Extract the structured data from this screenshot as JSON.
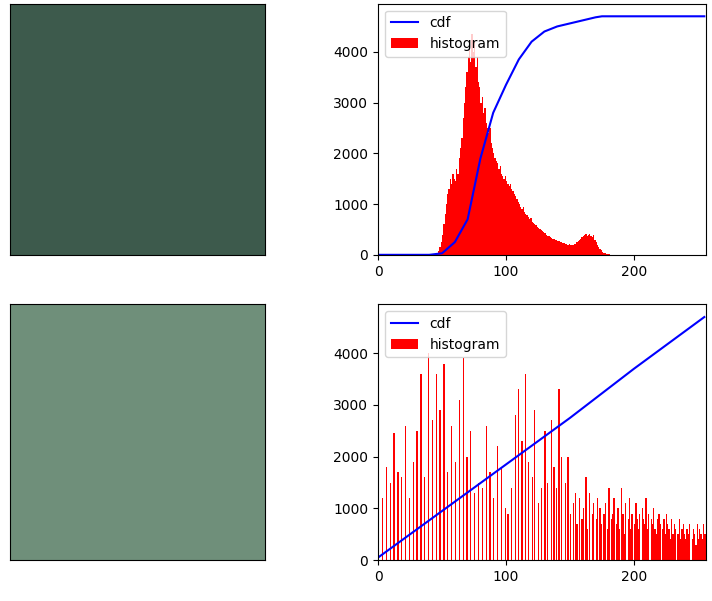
{
  "chart_data": [
    {
      "type": "histogram",
      "legend": "upper left",
      "xlim": [
        0,
        256
      ],
      "xticks": [
        0,
        100,
        200
      ],
      "ylim": [
        0,
        4950
      ],
      "yticks": [
        0,
        1000,
        2000,
        3000,
        4000
      ],
      "series": [
        {
          "name": "cdf",
          "type": "line",
          "color": "blue",
          "x": [
            0,
            40,
            50,
            60,
            70,
            80,
            90,
            100,
            110,
            120,
            130,
            140,
            150,
            160,
            170,
            175,
            190,
            255
          ],
          "values": [
            0,
            0,
            30,
            250,
            700,
            1900,
            2800,
            3350,
            3850,
            4200,
            4400,
            4500,
            4560,
            4620,
            4680,
            4700,
            4700,
            4700
          ]
        },
        {
          "name": "histogram",
          "type": "bar",
          "color": "red",
          "bins": [
            0,
            1,
            2,
            3,
            4,
            5,
            6,
            7,
            8,
            9,
            10,
            11,
            12,
            13,
            14,
            15,
            16,
            17,
            18,
            19,
            20,
            21,
            22,
            23,
            24,
            25,
            26,
            27,
            28,
            29,
            30,
            31,
            32,
            33,
            34,
            35,
            36,
            37,
            38,
            39,
            40,
            41,
            42,
            43,
            44,
            45,
            46,
            47,
            48,
            49,
            50,
            51,
            52,
            53,
            54,
            55,
            56,
            57,
            58,
            59,
            60,
            61,
            62,
            63,
            64,
            65,
            66,
            67,
            68,
            69,
            70,
            71,
            72,
            73,
            74,
            75,
            76,
            77,
            78,
            79,
            80,
            81,
            82,
            83,
            84,
            85,
            86,
            87,
            88,
            89,
            90,
            91,
            92,
            93,
            94,
            95,
            96,
            97,
            98,
            99,
            100,
            101,
            102,
            103,
            104,
            105,
            106,
            107,
            108,
            109,
            110,
            111,
            112,
            113,
            114,
            115,
            116,
            117,
            118,
            119,
            120,
            121,
            122,
            123,
            124,
            125,
            126,
            127,
            128,
            129,
            130,
            131,
            132,
            133,
            134,
            135,
            136,
            137,
            138,
            139,
            140,
            141,
            142,
            143,
            144,
            145,
            146,
            147,
            148,
            149,
            150,
            151,
            152,
            153,
            154,
            155,
            156,
            157,
            158,
            159,
            160,
            161,
            162,
            163,
            164,
            165,
            166,
            167,
            168,
            169,
            170,
            171,
            172,
            173,
            174,
            175,
            176,
            177,
            178,
            179,
            180,
            181,
            182,
            183,
            184,
            185,
            186,
            187,
            188,
            189,
            190,
            191,
            192,
            193,
            194,
            195,
            196,
            197,
            198,
            199,
            200,
            201,
            202,
            203,
            204,
            205,
            206,
            207,
            208,
            209,
            210,
            211,
            212,
            213,
            214,
            215,
            216,
            217,
            218,
            219,
            220,
            221,
            222,
            223,
            224,
            225,
            226,
            227,
            228,
            229,
            230,
            231,
            232,
            233,
            234,
            235,
            236,
            237,
            238,
            239,
            240,
            241,
            242,
            243,
            244,
            245,
            246,
            247,
            248,
            249,
            250,
            251,
            252,
            253,
            254,
            255,
            256
          ],
          "values": [
            0,
            0,
            0,
            0,
            0,
            0,
            0,
            0,
            0,
            0,
            0,
            0,
            0,
            0,
            0,
            0,
            0,
            0,
            0,
            0,
            0,
            0,
            0,
            0,
            0,
            0,
            0,
            0,
            0,
            0,
            0,
            0,
            0,
            0,
            0,
            0,
            0,
            0,
            0,
            0,
            0,
            0,
            0,
            0,
            0,
            20,
            40,
            80,
            150,
            250,
            400,
            600,
            800,
            1000,
            1200,
            1300,
            1500,
            1400,
            1600,
            1500,
            1450,
            1700,
            1600,
            1900,
            2100,
            2300,
            2700,
            3000,
            3300,
            3600,
            3900,
            4100,
            3800,
            4350,
            4000,
            4200,
            3700,
            3900,
            3400,
            3300,
            3000,
            3100,
            2800,
            2900,
            2600,
            2500,
            2400,
            2500,
            2200,
            2100,
            2000,
            1900,
            1850,
            1800,
            1700,
            1750,
            1600,
            1550,
            1500,
            1550,
            1450,
            1400,
            1350,
            1400,
            1300,
            1250,
            1200,
            1150,
            1100,
            1050,
            1000,
            950,
            900,
            950,
            850,
            800,
            780,
            750,
            700,
            720,
            650,
            620,
            600,
            580,
            550,
            530,
            500,
            480,
            460,
            450,
            430,
            400,
            380,
            370,
            350,
            340,
            320,
            310,
            300,
            290,
            280,
            270,
            260,
            250,
            240,
            230,
            220,
            210,
            200,
            210,
            200,
            190,
            200,
            210,
            220,
            250,
            280,
            300,
            320,
            350,
            380,
            400,
            420,
            380,
            400,
            420,
            380,
            350,
            400,
            300,
            250,
            200,
            160,
            120,
            90,
            60,
            40,
            30,
            20,
            10,
            8,
            5,
            3,
            2,
            1,
            0,
            0,
            0,
            0,
            0,
            0,
            0,
            0,
            0,
            0,
            0,
            0,
            0,
            0,
            0,
            0,
            0,
            0,
            0,
            0,
            0,
            0,
            0,
            0,
            0,
            0,
            0,
            0,
            0,
            0,
            0,
            0,
            0,
            0,
            0,
            0,
            0,
            0,
            0,
            0,
            0,
            0,
            0,
            0,
            0,
            0,
            0,
            0,
            0,
            0,
            0,
            0,
            0,
            0,
            0,
            0,
            0,
            0,
            0,
            0,
            0,
            0,
            0,
            0,
            0,
            0,
            0,
            0,
            0,
            0,
            0
          ]
        }
      ]
    },
    {
      "type": "histogram",
      "legend": "upper left",
      "xlim": [
        0,
        256
      ],
      "xticks": [
        0,
        100,
        200
      ],
      "ylim": [
        0,
        4950
      ],
      "yticks": [
        0,
        1000,
        2000,
        3000,
        4000
      ],
      "series": [
        {
          "name": "cdf",
          "type": "line",
          "color": "blue",
          "x": [
            0,
            50,
            100,
            150,
            200,
            255
          ],
          "values": [
            50,
            950,
            1850,
            2750,
            3700,
            4700
          ]
        },
        {
          "name": "histogram",
          "type": "bar",
          "color": "red",
          "bins": [
            0,
            1,
            2,
            3,
            4,
            5,
            6,
            7,
            8,
            9,
            10,
            11,
            12,
            13,
            14,
            15,
            16,
            17,
            18,
            19,
            20,
            21,
            22,
            23,
            24,
            25,
            26,
            27,
            28,
            29,
            30,
            31,
            32,
            33,
            34,
            35,
            36,
            37,
            38,
            39,
            40,
            41,
            42,
            43,
            44,
            45,
            46,
            47,
            48,
            49,
            50,
            51,
            52,
            53,
            54,
            55,
            56,
            57,
            58,
            59,
            60,
            61,
            62,
            63,
            64,
            65,
            66,
            67,
            68,
            69,
            70,
            71,
            72,
            73,
            74,
            75,
            76,
            77,
            78,
            79,
            80,
            81,
            82,
            83,
            84,
            85,
            86,
            87,
            88,
            89,
            90,
            91,
            92,
            93,
            94,
            95,
            96,
            97,
            98,
            99,
            100,
            101,
            102,
            103,
            104,
            105,
            106,
            107,
            108,
            109,
            110,
            111,
            112,
            113,
            114,
            115,
            116,
            117,
            118,
            119,
            120,
            121,
            122,
            123,
            124,
            125,
            126,
            127,
            128,
            129,
            130,
            131,
            132,
            133,
            134,
            135,
            136,
            137,
            138,
            139,
            140,
            141,
            142,
            143,
            144,
            145,
            146,
            147,
            148,
            149,
            150,
            151,
            152,
            153,
            154,
            155,
            156,
            157,
            158,
            159,
            160,
            161,
            162,
            163,
            164,
            165,
            166,
            167,
            168,
            169,
            170,
            171,
            172,
            173,
            174,
            175,
            176,
            177,
            178,
            179,
            180,
            181,
            182,
            183,
            184,
            185,
            186,
            187,
            188,
            189,
            190,
            191,
            192,
            193,
            194,
            195,
            196,
            197,
            198,
            199,
            200,
            201,
            202,
            203,
            204,
            205,
            206,
            207,
            208,
            209,
            210,
            211,
            212,
            213,
            214,
            215,
            216,
            217,
            218,
            219,
            220,
            221,
            222,
            223,
            224,
            225,
            226,
            227,
            228,
            229,
            230,
            231,
            232,
            233,
            234,
            235,
            236,
            237,
            238,
            239,
            240,
            241,
            242,
            243,
            244,
            245,
            246,
            247,
            248,
            249,
            250,
            251,
            252,
            253,
            254,
            255,
            256
          ],
          "values": [
            600,
            0,
            0,
            1200,
            0,
            0,
            1800,
            0,
            0,
            1500,
            0,
            0,
            2450,
            0,
            0,
            1700,
            0,
            0,
            1600,
            0,
            0,
            2600,
            0,
            0,
            1200,
            0,
            0,
            1900,
            0,
            0,
            2500,
            0,
            0,
            3600,
            0,
            0,
            1600,
            0,
            0,
            4000,
            0,
            0,
            2700,
            0,
            0,
            3600,
            0,
            0,
            2900,
            0,
            0,
            3800,
            0,
            0,
            1700,
            0,
            0,
            2600,
            0,
            0,
            1900,
            0,
            0,
            3100,
            0,
            0,
            3900,
            0,
            0,
            2000,
            0,
            0,
            2500,
            0,
            0,
            1300,
            0,
            0,
            1500,
            0,
            0,
            1400,
            0,
            0,
            2600,
            0,
            0,
            1700,
            0,
            0,
            1200,
            0,
            0,
            2200,
            0,
            0,
            1800,
            0,
            0,
            1000,
            0,
            900,
            0,
            0,
            1400,
            0,
            0,
            2800,
            0,
            3300,
            0,
            0,
            2300,
            0,
            0,
            3600,
            0,
            1900,
            0,
            0,
            1600,
            0,
            2900,
            0,
            0,
            1100,
            0,
            1400,
            0,
            0,
            2500,
            0,
            1500,
            0,
            0,
            2700,
            0,
            1800,
            0,
            1400,
            0,
            3300,
            0,
            2000,
            0,
            0,
            1500,
            0,
            2000,
            0,
            900,
            0,
            1100,
            0,
            1300,
            700,
            0,
            1200,
            0,
            800,
            1000,
            0,
            1600,
            600,
            0,
            1300,
            0,
            900,
            1100,
            0,
            800,
            1200,
            0,
            1000,
            700,
            0,
            900,
            1100,
            0,
            600,
            1400,
            0,
            800,
            900,
            1200,
            0,
            700,
            1000,
            600,
            0,
            1400,
            900,
            500,
            1100,
            0,
            800,
            1200,
            600,
            900,
            0,
            700,
            1100,
            800,
            600,
            900,
            0,
            1000,
            800,
            700,
            1200,
            600,
            900,
            0,
            800,
            700,
            1000,
            600,
            500,
            800,
            900,
            700,
            0,
            600,
            800,
            500,
            900,
            700,
            600,
            400,
            800,
            500,
            700,
            600,
            0,
            500,
            800,
            400,
            600,
            700,
            500,
            400,
            600,
            500,
            700,
            0,
            400,
            600,
            500,
            300,
            700,
            400,
            600,
            500,
            400,
            700,
            500
          ]
        }
      ]
    }
  ]
}
